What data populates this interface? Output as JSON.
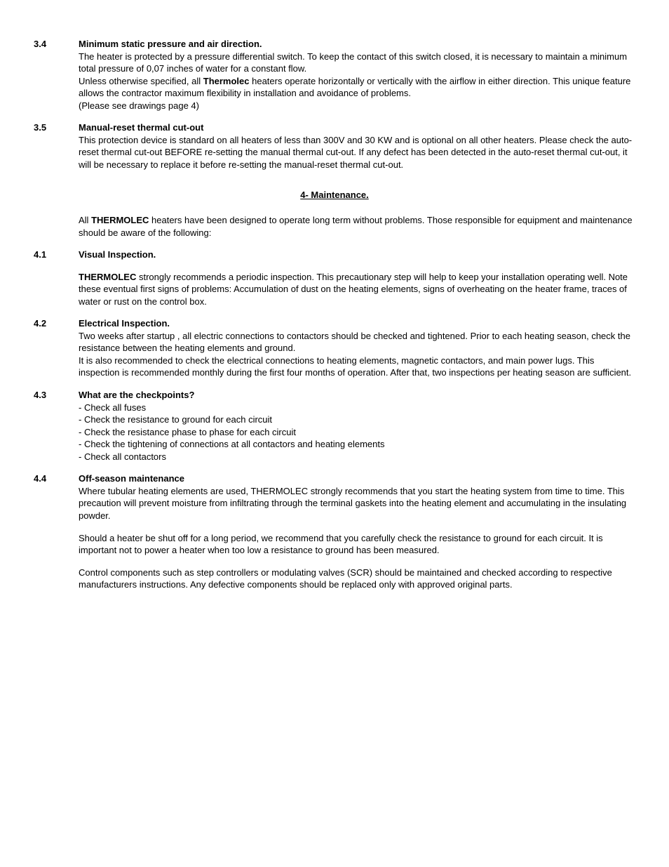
{
  "s34": {
    "num": "3.4",
    "title": "Minimum static pressure and air direction.",
    "p1": "The heater is protected by a pressure differential switch. To keep the contact of this switch closed, it is necessary to maintain a minimum total pressure of 0,07 inches of water for a constant flow.",
    "p2a": "Unless otherwise specified, all ",
    "p2b": "Thermolec",
    "p2c": " heaters operate horizontally or vertically with the airflow in either direction. This unique feature allows the contractor maximum flexibility in installation and avoidance of problems.",
    "p3": "(Please see drawings page 4)"
  },
  "s35": {
    "num": "3.5",
    "title": "Manual-reset thermal cut-out",
    "p1": "This protection device is standard on all heaters of less than 300V and 30 KW and is optional on all other heaters. Please check the auto-reset thermal cut-out BEFORE re-setting the manual thermal cut-out. If any defect has been detected in the auto-reset thermal cut-out, it will be necessary to replace it before re-setting the manual-reset thermal cut-out."
  },
  "h4": "4- Maintenance.",
  "intro": {
    "a": "All ",
    "b": "THERMOLEC",
    "c": " heaters have been designed to operate long term without problems. Those responsible for equipment and maintenance should be aware of the following:"
  },
  "s41": {
    "num": "4.1",
    "title": "Visual Inspection.",
    "p1a": "THERMOLEC",
    "p1b": " strongly recommends a periodic inspection. This precautionary step will help to keep your installation operating well. Note these eventual first signs of problems: Accumulation of dust on the heating elements, signs of overheating on the heater frame, traces of water or rust on the control box."
  },
  "s42": {
    "num": "4.2",
    "title": "Electrical Inspection.",
    "p1": "Two weeks after startup , all electric connections to contactors should be checked and tightened.  Prior to each heating season, check the resistance between the heating elements and ground.",
    "p2": "It is also recommended to check the electrical connections to heating elements, magnetic contactors, and main power lugs. This inspection is recommended monthly during the first four months of operation. After that, two inspections per heating season are sufficient."
  },
  "s43": {
    "num": "4.3",
    "title": "What are the checkpoints?",
    "l1": "- Check all fuses",
    "l2": "- Check the resistance to ground for each circuit",
    "l3": "- Check the resistance phase to phase for each circuit",
    "l4": "- Check the tightening of connections at all contactors and heating elements",
    "l5": "- Check all contactors"
  },
  "s44": {
    "num": "4.4",
    "title": "Off-season maintenance",
    "p1": "Where tubular heating elements are used, THERMOLEC strongly recommends that you start the heating system from time to time. This precaution will prevent moisture from infiltrating through the terminal gaskets into the heating element and accumulating in the insulating powder.",
    "p2": "Should a heater be shut off for a long period, we recommend that you carefully check the resistance to ground for each circuit. It is important not to power a heater when too low a resistance to ground has been measured.",
    "p3": "Control components such as step controllers or modulating valves (SCR) should be maintained and checked according to respective manufacturers instructions. Any defective components should be replaced only with approved original parts."
  }
}
